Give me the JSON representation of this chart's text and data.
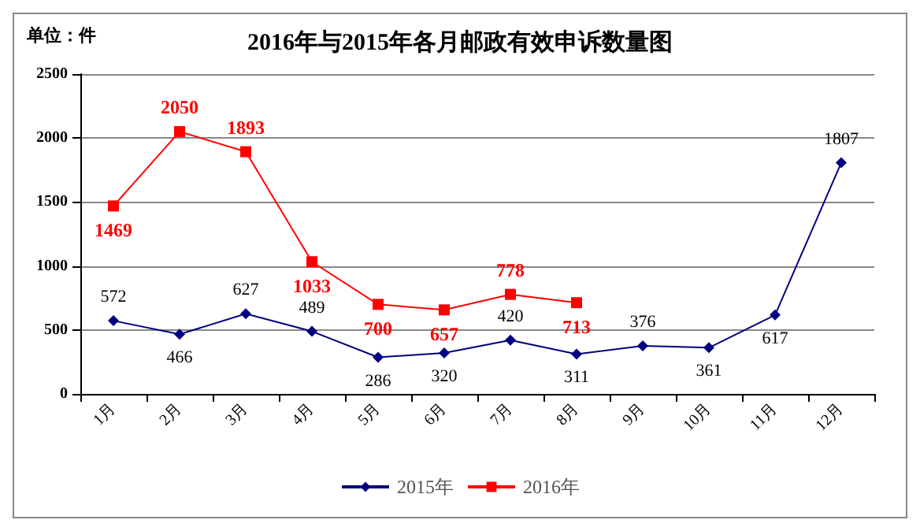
{
  "chart_data": {
    "type": "line",
    "title": "2016年与2015年各月邮政有效申诉数量图",
    "annotations": [
      "单位：件"
    ],
    "categories": [
      "1月",
      "2月",
      "3月",
      "4月",
      "5月",
      "6月",
      "7月",
      "8月",
      "9月",
      "10月",
      "11月",
      "12月"
    ],
    "series": [
      {
        "name": "2015年",
        "color": "#000080",
        "marker": "diamond",
        "values": [
          572,
          466,
          627,
          489,
          286,
          320,
          420,
          311,
          376,
          361,
          617,
          1807
        ]
      },
      {
        "name": "2016年",
        "color": "#ff0000",
        "marker": "square",
        "values": [
          1469,
          2050,
          1893,
          1033,
          700,
          657,
          778,
          713,
          null,
          null,
          null,
          null
        ]
      }
    ],
    "ylim": [
      0,
      2500
    ],
    "yticks": [
      0,
      500,
      1000,
      1500,
      2000,
      2500
    ],
    "grid": "y",
    "legend": "bottom",
    "data_labels": true,
    "line_style": "solid"
  }
}
